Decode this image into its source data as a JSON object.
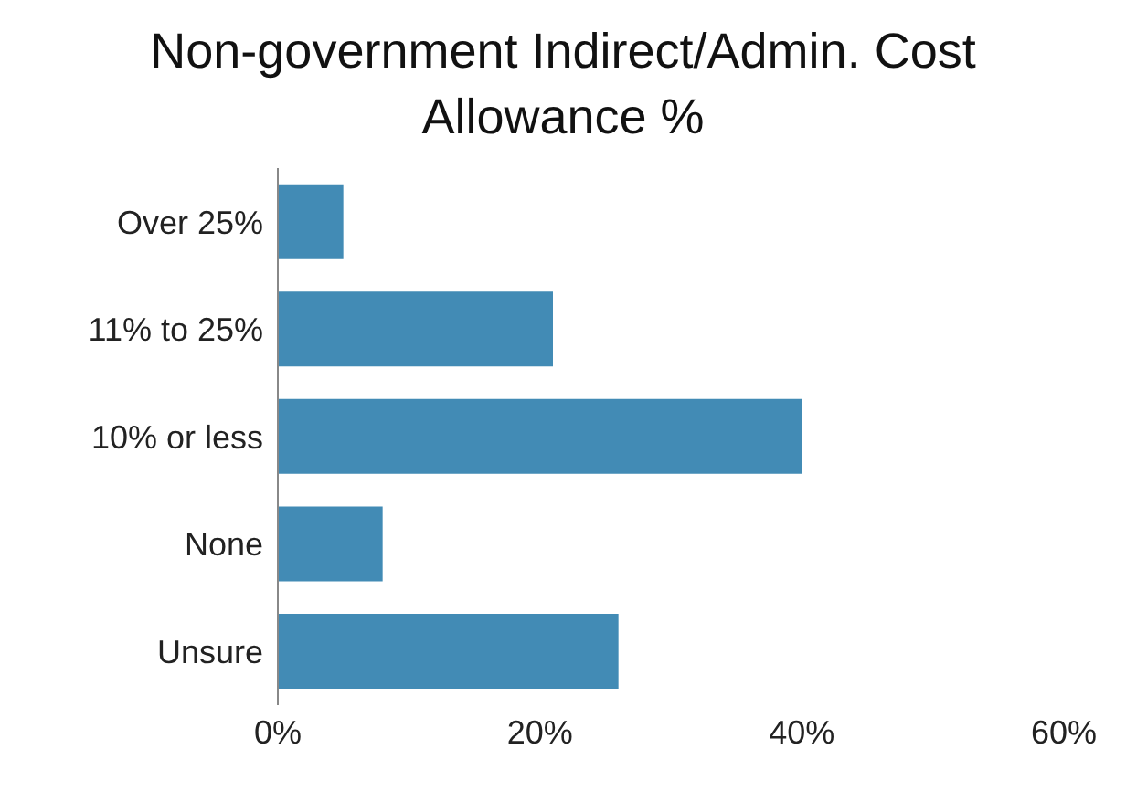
{
  "chart_data": {
    "type": "bar",
    "orientation": "horizontal",
    "title": "Non-government Indirect/Admin. Cost Allowance %",
    "categories": [
      "Over 25%",
      "11% to 25%",
      "10% or less",
      "None",
      "Unsure"
    ],
    "values": [
      5,
      21,
      40,
      8,
      26
    ],
    "color": "#428bb5",
    "xlim": [
      0,
      60
    ],
    "xticks": [
      {
        "value": 0,
        "label": "0%"
      },
      {
        "value": 20,
        "label": "20%"
      },
      {
        "value": 40,
        "label": "40%"
      },
      {
        "value": 60,
        "label": "60%"
      }
    ],
    "grid": false,
    "legend": false
  }
}
